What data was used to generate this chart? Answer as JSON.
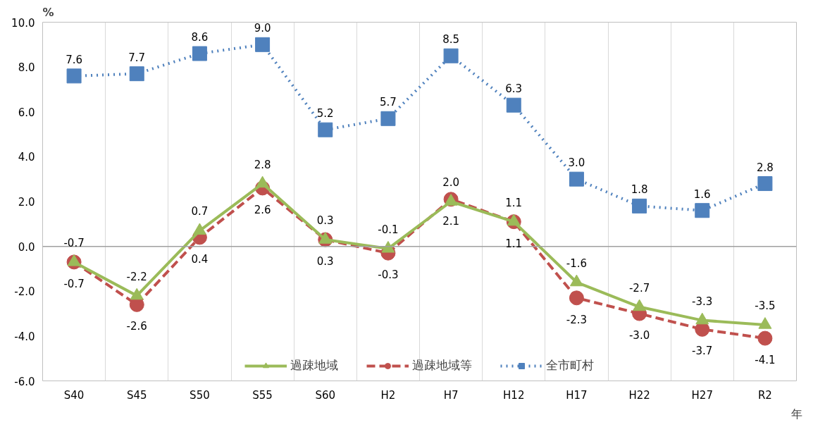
{
  "chart_data": {
    "type": "line",
    "ylabel": "%",
    "xlabel": "年",
    "categories": [
      "S40",
      "S45",
      "S50",
      "S55",
      "S60",
      "H2",
      "H7",
      "H12",
      "H17",
      "H22",
      "H27",
      "R2"
    ],
    "series": [
      {
        "name": "過疎地域",
        "color": "#9bbb59",
        "marker": "triangle",
        "line_style": "solid",
        "values": [
          -0.7,
          -2.2,
          0.7,
          2.8,
          0.3,
          -0.1,
          2.0,
          1.1,
          -1.6,
          -2.7,
          -3.3,
          -3.5
        ],
        "value_labels": [
          "-0.7",
          "-2.2",
          "0.7",
          "2.8",
          "0.3",
          "-0.1",
          "2.0",
          "1.1",
          "-1.6",
          "-2.7",
          "-3.3",
          "-3.5"
        ]
      },
      {
        "name": "過疎地域等",
        "color": "#c0504d",
        "marker": "circle",
        "line_style": "dashed",
        "values": [
          -0.7,
          -2.6,
          0.4,
          2.6,
          0.3,
          -0.3,
          2.1,
          1.1,
          -2.3,
          -3.0,
          -3.7,
          -4.1
        ],
        "value_labels": [
          "-0.7",
          "-2.6",
          "0.4",
          "2.6",
          "0.3",
          "-0.3",
          "2.1",
          "1.1",
          "-2.3",
          "-3.0",
          "-3.7",
          "-4.1"
        ]
      },
      {
        "name": "全市町村",
        "color": "#4f81bd",
        "marker": "square",
        "line_style": "dotted",
        "values": [
          7.6,
          7.7,
          8.6,
          9.0,
          5.2,
          5.7,
          8.5,
          6.3,
          3.0,
          1.8,
          1.6,
          2.8
        ],
        "value_labels": [
          "7.6",
          "7.7",
          "8.6",
          "9.0",
          "5.2",
          "5.7",
          "8.5",
          "6.3",
          "3.0",
          "1.8",
          "1.6",
          "2.8"
        ]
      }
    ],
    "ylim": [
      -6,
      10
    ],
    "yticks": [
      {
        "value": -6,
        "label": "-6.0"
      },
      {
        "value": -4,
        "label": "-4.0"
      },
      {
        "value": -2,
        "label": "-2.0"
      },
      {
        "value": 0,
        "label": "0.0"
      },
      {
        "value": 2,
        "label": "2.0"
      },
      {
        "value": 4,
        "label": "4.0"
      },
      {
        "value": 6,
        "label": "6.0"
      },
      {
        "value": 8,
        "label": "8.0"
      },
      {
        "value": 10,
        "label": "10.0"
      }
    ],
    "ref_lines": [
      {
        "axis": "y",
        "value": 0,
        "color": "#a0a0a0"
      }
    ],
    "grid": "x",
    "legend": "bottom"
  }
}
